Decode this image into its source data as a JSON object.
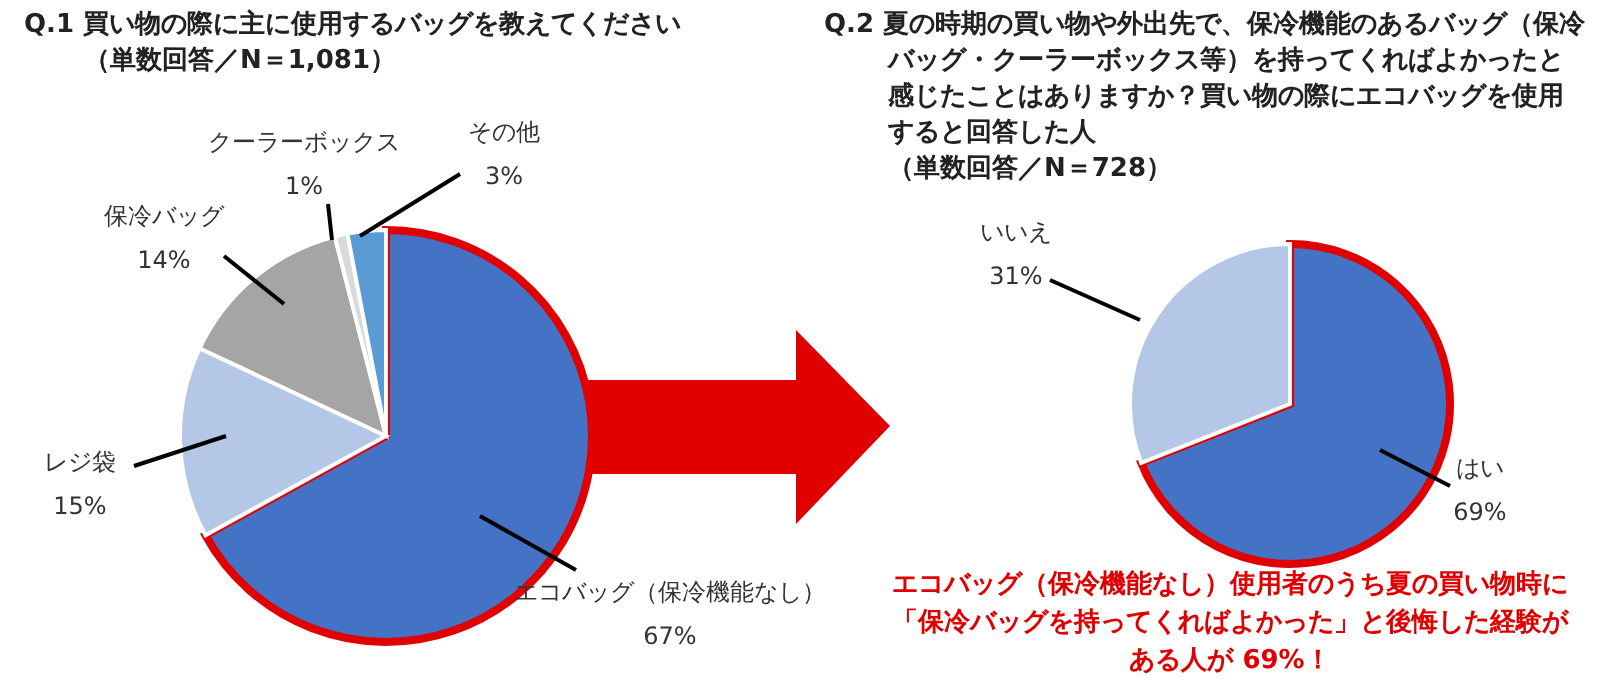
{
  "chart_data": [
    {
      "type": "pie",
      "title": "Q.1 買い物の際に主に使用するバッグを教えてください",
      "subtitle": "（単数回答／N＝1,081）",
      "categories": [
        "エコバッグ（保冷機能なし）",
        "レジ袋",
        "保冷バッグ",
        "クーラーボックス",
        "その他"
      ],
      "values": [
        67,
        15,
        14,
        1,
        3
      ],
      "value_labels": [
        "67%",
        "15%",
        "14%",
        "1%",
        "3%"
      ],
      "colors": [
        "#4472c4",
        "#b4c7e7",
        "#a5a5a5",
        "#d9d9d9",
        "#5b9bd5"
      ]
    },
    {
      "type": "pie",
      "title": "Q.2 夏の時期の買い物や外出先で、保冷機能のあるバッグ（保冷バッグ・クーラーボックス等）を持ってくればよかったと感じたことはありますか？買い物の際にエコバッグを使用すると回答した人",
      "subtitle": "（単数回答／N＝728）",
      "categories": [
        "はい",
        "いいえ"
      ],
      "values": [
        69,
        31
      ],
      "value_labels": [
        "69%",
        "31%"
      ],
      "colors": [
        "#4472c4",
        "#b4c7e7"
      ],
      "annotations": [
        "エコバッグ（保冷機能なし）使用者のうち夏の買い物時に「保冷バッグを持ってくればよかった」と後悔した経験がある人が 69%！"
      ]
    }
  ]
}
